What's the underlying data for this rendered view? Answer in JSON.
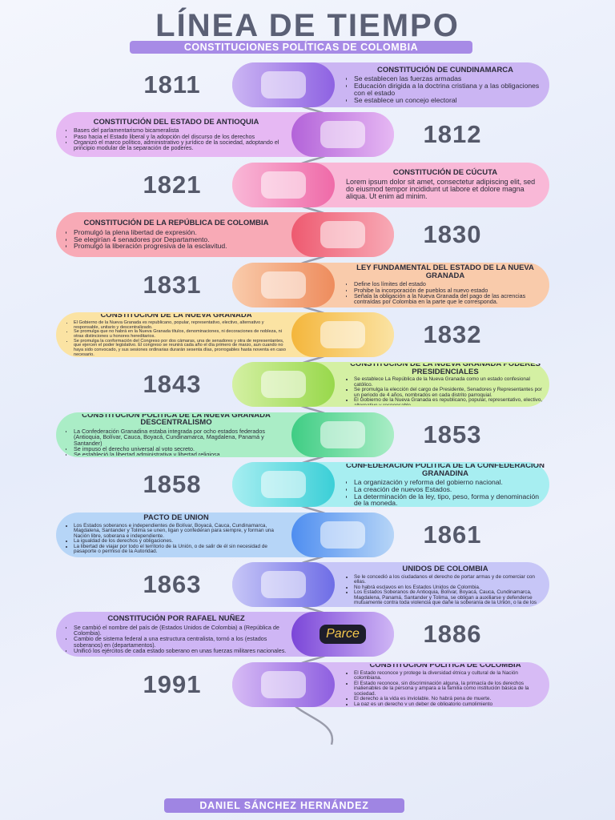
{
  "header": {
    "title": "LÍNEA DE TIEMPO",
    "subtitle": "CONSTITUCIONES POLÍTICAS DE COLOMBIA"
  },
  "events": [
    {
      "year": "1811",
      "title": "CONSTITUCIÓN DE CUNDINAMARCA",
      "items": [
        "Se establecen las fuerzas armadas",
        "Educación dirigida a la doctrina cristiana y a las obligaciones con el estado",
        "Se establece un concejo electoral"
      ]
    },
    {
      "year": "1812",
      "title": "CONSTITUCIÓN DEL ESTADO DE ANTIOQUIA",
      "items": [
        "Bases del parlamentarismo bicameralista",
        "Paso hacia el Estado liberal y la adopción del discurso de los derechos",
        "Organizó el marco político, administrativo y jurídico de la sociedad, adoptando el principio modular de la separación de poderes."
      ]
    },
    {
      "year": "1821",
      "title": "CONSTITUCIÓN DE CÚCUTA",
      "items": [
        "Lorem ipsum dolor sit amet, consectetur adipiscing elit, sed do eiusmod tempor incididunt ut labore et dolore magna aliqua. Ut enim ad minim."
      ]
    },
    {
      "year": "1830",
      "title": "CONSTITUCIÓN DE LA REPÚBLICA DE COLOMBIA",
      "items": [
        "Promulgó la plena libertad de expresión.",
        "Se elegirían 4 senadores por Departamento.",
        "Promulgó la liberación progresiva de la esclavitud."
      ]
    },
    {
      "year": "1831",
      "title": "LEY FUNDAMENTAL DEL ESTADO DE LA NUEVA GRANADA",
      "items": [
        "Define los límites del estado",
        "Prohibe la incorporación de pueblos al nuevo estado",
        "Señala la obligación a la Nueva Granada del pago de las acrencias contraídas por Colombia en la parte que le corresponda."
      ]
    },
    {
      "year": "1832",
      "title": "CONSTITUCIÓN DE LA NUEVA GRANADA",
      "items": [
        "El Gobierno de la Nueva Granada es republicano, popular, representativo, electivo, alternativo y responsable, unitario y descentralizado.",
        "Se promulga que no habrá en la Nueva Granada títulos, denominaciones, ni decoraciones de nobleza, ni otras distinciones u honores hereditarios.",
        "Se promulga la conformación del Congreso por dos cámaras, una de senadores y otra de representantes, que ejercen el poder legislativo. El congreso se reunirá cada año el día primero de marzo, aun cuando no haya sido convocado, y sus sesiones ordinarias durarán sesenta días, prorrogables hasta noventa en caso necesario."
      ]
    },
    {
      "year": "1843",
      "title": "CONSTITUCIÓN DE LA NUEVA GRANADA PODERES PRESIDENCIALES",
      "items": [
        "Se establece La República de la Nueva Granada como un estado confesional católico.",
        "Se promulga la elección del cargo de Presidente, Senadores y Representantes por un periodo de 4 años, nombrados en cada distrito parroquial.",
        "El Gobierno de la Nueva Granada es republicano, popular, representativo, electivo, alternativo y responsable."
      ]
    },
    {
      "year": "1853",
      "title": "CONSTITUCIÓN POLÍTICA DE LA NUEVA GRANADA DESCENTRALISMO",
      "items": [
        "La Confederación Granadina estaba integrada por ocho estados federados (Antioquia, Bolívar, Cauca, Boyacá, Cundinamarca, Magdalena, Panamá y Santander)",
        "Se impuso el derecho universal al voto secreto.",
        "Se estableció la libertad administrativa y libertad religiosa."
      ]
    },
    {
      "year": "1858",
      "title": "CONFEDERACIÓN POLÍTICA DE LA CONFEDERACIÓN GRANADINA",
      "items": [
        "La organización y reforma del gobierno nacional.",
        "La creación de nuevos Estados.",
        "La determinación de la ley, tipo, peso, forma y denominación de la moneda."
      ]
    },
    {
      "year": "1861",
      "title": "PACTO DE UNIÓN",
      "items": [
        "Los Estados soberanos e independientes de Bolívar, Boyacá, Cauca, Cundinamarca, Magdalena, Santander y Tolima se unen, ligan y confederan para siempre, y forman una Nación libre, soberana e independiente.",
        "La igualdad de los derechos y obligaciones.",
        "La libertad de viajar por todo el territorio de la Unión, o de salir de él sin necesidad de pasaporte o permiso de la Autoridad."
      ]
    },
    {
      "year": "1863",
      "title": "CONSTITUCIÓN POLÍTICA PARA LOS ESTADOS UNIDOS DE COLOMBIA",
      "items": [
        "Se le concedió a los ciudadanos el derecho de portar armas y de comerciar con ellas.",
        "No habrá esclavos en los Estados Unidos de Colombia.",
        "Los Estados Soberanos de Antioquia, Bolívar, Boyacá, Cauca, Cundinamarca, Magdalena, Panamá, Santander y Tolima, se obligan a auxiliarse y defenderse mutuamente contra toda violencia que dañe la soberanía de la Unión, o la de los Estados."
      ]
    },
    {
      "year": "1886",
      "title": "CONSTITUCIÓN POR RAFAEL NUÑEZ",
      "badge": "Parce",
      "items": [
        "Se cambió el nombre del país de (Estados Unidos de Colombia) a (República de Colombia).",
        "Cambio de sistema federal a una estructura centralista, tornó a los (estados soberanos) en (departamentos).",
        "Unificó los ejércitos de cada estado soberano en unas fuerzas militares nacionales."
      ]
    },
    {
      "year": "1991",
      "title": "CONSTITUCIÓN POLÍTICA DE COLOMBIA",
      "items": [
        "El Estado reconoce y protege la diversidad étnica y cultural de la Nación colombiana.",
        "El Estado reconoce, sin discriminación alguna, la primacía de los derechos inalienables de la persona y ampara a la familia como institución básica de la sociedad.",
        "El derecho a la vida es inviolable. No habrá pena de muerte.",
        "La paz es un derecho y un deber de obligatorio cumplimiento"
      ]
    }
  ],
  "footer": {
    "author": "DANIEL SÁNCHEZ HERNÁNDEZ"
  }
}
